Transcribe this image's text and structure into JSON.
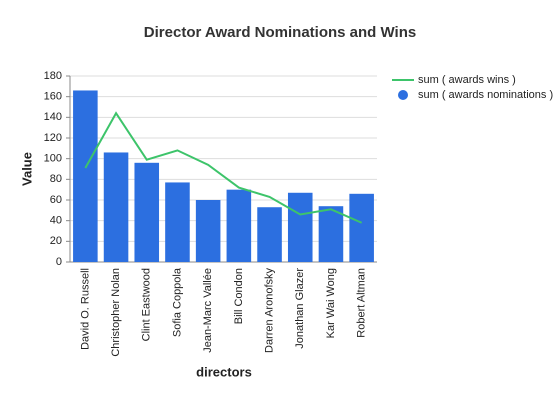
{
  "chart_data": {
    "type": "bar",
    "title": "Director Award Nominations and Wins",
    "x_label": "directors",
    "y_label": "Value",
    "categories": [
      "David O. Russell",
      "Christopher Nolan",
      "Clint Eastwood",
      "Sofia Coppola",
      "Jean-Marc Vallée",
      "Bill Condon",
      "Darren Aronofsky",
      "Jonathan Glazer",
      "Kar Wai Wong",
      "Robert Altman"
    ],
    "series": [
      {
        "name": "sum ( awards wins )",
        "type": "line",
        "color": "#3dc46a",
        "values": [
          91,
          144,
          99,
          108,
          94,
          72,
          63,
          46,
          51,
          38
        ]
      },
      {
        "name": "sum ( awards nominations )",
        "type": "bar",
        "color": "#2c6fe0",
        "values": [
          166,
          106,
          96,
          77,
          60,
          70,
          53,
          67,
          54,
          66
        ]
      }
    ],
    "ylim": [
      0,
      180
    ],
    "yticks": [
      0,
      20,
      40,
      60,
      80,
      100,
      120,
      140,
      160,
      180
    ],
    "grid": true,
    "legend": "right"
  }
}
